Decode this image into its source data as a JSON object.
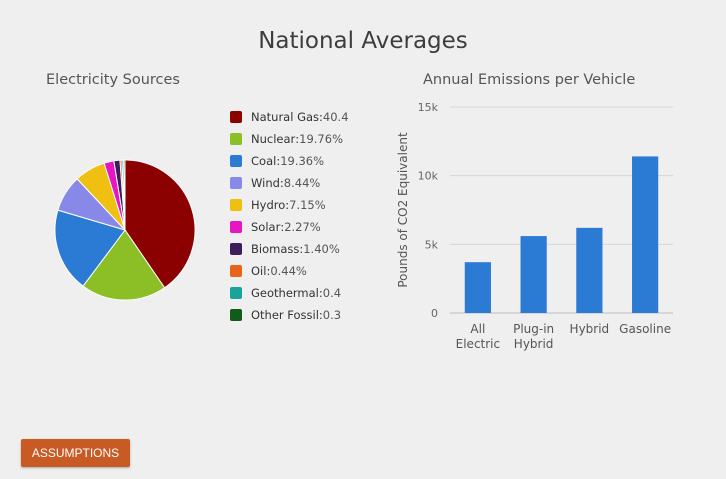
{
  "page": {
    "title": "National Averages",
    "assumptions_label": "ASSUMPTIONS"
  },
  "chart_data": [
    {
      "type": "pie",
      "title": "Electricity Sources",
      "legend_position": "right",
      "slices": [
        {
          "name": "Natural Gas",
          "label": "40.4",
          "value": 40.4,
          "color": "#8b0000"
        },
        {
          "name": "Nuclear",
          "label": "19.76%",
          "value": 19.76,
          "color": "#8cbf26"
        },
        {
          "name": "Coal",
          "label": "19.36%",
          "value": 19.36,
          "color": "#2b7bd5"
        },
        {
          "name": "Wind",
          "label": "8.44%",
          "value": 8.44,
          "color": "#8888e8"
        },
        {
          "name": "Hydro",
          "label": "7.15%",
          "value": 7.15,
          "color": "#efbf12"
        },
        {
          "name": "Solar",
          "label": "2.27%",
          "value": 2.27,
          "color": "#e815c2"
        },
        {
          "name": "Biomass",
          "label": "1.40%",
          "value": 1.4,
          "color": "#3c1e5c"
        },
        {
          "name": "Oil",
          "label": "0.44%",
          "value": 0.44,
          "color": "#e8641a"
        },
        {
          "name": "Geothermal",
          "label": "0.4",
          "value": 0.4,
          "color": "#1aa399"
        },
        {
          "name": "Other Fossil",
          "label": "0.3",
          "value": 0.3,
          "color": "#0f5c1b"
        }
      ]
    },
    {
      "type": "bar",
      "title": "Annual Emissions per Vehicle",
      "ylabel": "Pounds of CO2 Equivalent",
      "ylim": [
        0,
        15000
      ],
      "yticks": [
        {
          "value": 0,
          "label": "0"
        },
        {
          "value": 5000,
          "label": "5k"
        },
        {
          "value": 10000,
          "label": "10k"
        },
        {
          "value": 15000,
          "label": "15k"
        }
      ],
      "grid": true,
      "color": "#2b7bd5",
      "categories": [
        {
          "lines": [
            "All",
            "Electric"
          ]
        },
        {
          "lines": [
            "Plug-in",
            "Hybrid"
          ]
        },
        {
          "lines": [
            "Hybrid"
          ]
        },
        {
          "lines": [
            "Gasoline"
          ]
        }
      ],
      "values": [
        3700,
        5600,
        6200,
        11400
      ]
    }
  ]
}
